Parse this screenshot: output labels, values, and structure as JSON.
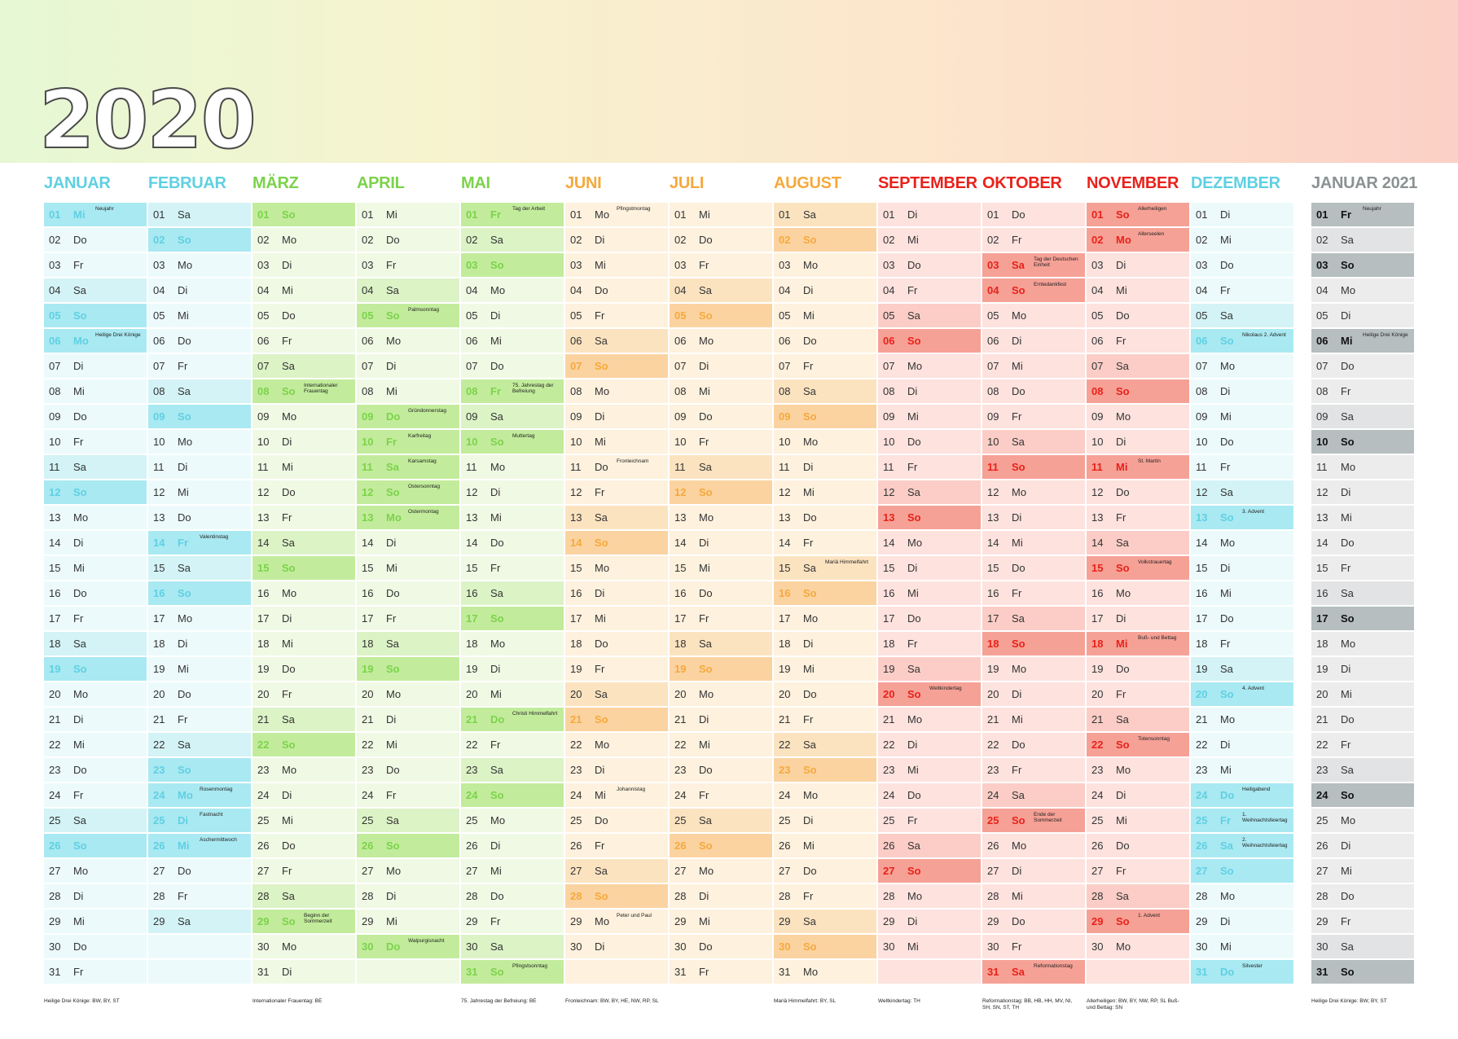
{
  "year": "2020",
  "colors": {
    "teal": [
      "#ecfafb",
      "#d3f3f6",
      "#a9e9f2",
      "#5fd0e2"
    ],
    "green": [
      "#f0f9e4",
      "#dcf3c6",
      "#c2ec9b",
      "#7cd24c"
    ],
    "orange": [
      "#fef1dd",
      "#fce3c0",
      "#fbd3a1",
      "#f5a93c"
    ],
    "red": [
      "#fde2de",
      "#fbcdc6",
      "#f6a196",
      "#e8221b"
    ],
    "gray": [
      "#ececec",
      "#e1e3e4",
      "#b6bebf",
      "#4a4a4a"
    ]
  },
  "months": [
    {
      "name": "JANUAR",
      "theme": "teal",
      "start": 2,
      "ndays": 31,
      "holidays": {
        "1": "Neujahr",
        "6": "Heilige Drei Könige"
      }
    },
    {
      "name": "FEBRUAR",
      "theme": "teal",
      "start": 5,
      "ndays": 29,
      "holidays": {
        "14": "Valentinstag",
        "24": "Rosenmontag",
        "25": "Fastnacht",
        "26": "Aschermittwoch"
      }
    },
    {
      "name": "MÄRZ",
      "theme": "green",
      "start": 6,
      "ndays": 31,
      "holidays": {
        "8": "Internationaler Frauentag",
        "29": "Beginn der Sommerzeit"
      }
    },
    {
      "name": "APRIL",
      "theme": "green",
      "start": 2,
      "ndays": 30,
      "holidays": {
        "5": "Palmsonntag",
        "9": "Gründonnerstag",
        "10": "Karfreitag",
        "11": "Karsamstag",
        "12": "Ostersonntag",
        "13": "Ostermontag",
        "30": "Walpurgisnacht"
      }
    },
    {
      "name": "MAI",
      "theme": "green",
      "start": 4,
      "ndays": 31,
      "holidays": {
        "1": "Tag der Arbeit",
        "8": "75. Jahrestag der Befreiung",
        "10": "Muttertag",
        "21": "Christi Himmelfahrt",
        "31": "Pfingstsonntag"
      }
    },
    {
      "name": "JUNI",
      "theme": "orange",
      "start": 0,
      "ndays": 30,
      "holidays": {
        "1": "Pfingstmontag",
        "11": "Fronleichnam",
        "24": "Johannistag",
        "29": "Peter und Paul"
      }
    },
    {
      "name": "JULI",
      "theme": "orange",
      "start": 2,
      "ndays": 31,
      "holidays": {}
    },
    {
      "name": "AUGUST",
      "theme": "orange",
      "start": 5,
      "ndays": 31,
      "holidays": {
        "15": "Mariä Himmelfahrt"
      }
    },
    {
      "name": "SEPTEMBER",
      "theme": "red",
      "start": 1,
      "ndays": 30,
      "holidays": {
        "20": "Weltkindertag"
      }
    },
    {
      "name": "OKTOBER",
      "theme": "red",
      "start": 3,
      "ndays": 31,
      "holidays": {
        "3": "Tag der Deutschen Einheit",
        "4": "Erntedankfest",
        "25": "Ende der Sommerzeit",
        "31": "Reformationstag"
      }
    },
    {
      "name": "NOVEMBER",
      "theme": "red",
      "start": 6,
      "ndays": 30,
      "holidays": {
        "1": "Allerheiligen",
        "2": "Allerseelen",
        "11": "St. Martin",
        "15": "Volkstrauertag",
        "18": "Buß- und Bettag",
        "22": "Totensonntag",
        "29": "1. Advent"
      }
    },
    {
      "name": "DEZEMBER",
      "theme": "teal",
      "start": 1,
      "ndays": 31,
      "holidays": {
        "6": "Nikolaus 2. Advent",
        "13": "3. Advent",
        "20": "4. Advent",
        "24": "Heiligabend",
        "25": "1. Weihnachtsfeiertag",
        "26": "2. Weihnachtsfeiertag",
        "31": "Silvester"
      }
    },
    {
      "name": "JANUAR 2021",
      "theme": "gray",
      "start": 4,
      "ndays": 31,
      "holidays": {
        "1": "Neujahr",
        "6": "Heilige Drei Könige"
      }
    }
  ],
  "weekdays": [
    "Mo",
    "Di",
    "Mi",
    "Do",
    "Fr",
    "Sa",
    "So"
  ],
  "footnotes": {
    "0": "Heilige Drei Könige: BW, BY, ST",
    "2": "Internationaler Frauentag: BE",
    "4": "75. Jahrestag der Befreiung: BE",
    "5": "Fronleichnam: BW, BY, HE, NW, RP, SL",
    "7": "Mariä Himmelfahrt: BY, SL",
    "8": "Weltkindertag: TH",
    "9": "Reformationstag: BB, HB, HH, MV, NI, SH, SN, ST, TH",
    "10": "Allerheiligen: BW, BY, NW, RP, SL Buß- und Bettag: SN",
    "12": "Heilige Drei Könige: BW, BY, ST"
  }
}
